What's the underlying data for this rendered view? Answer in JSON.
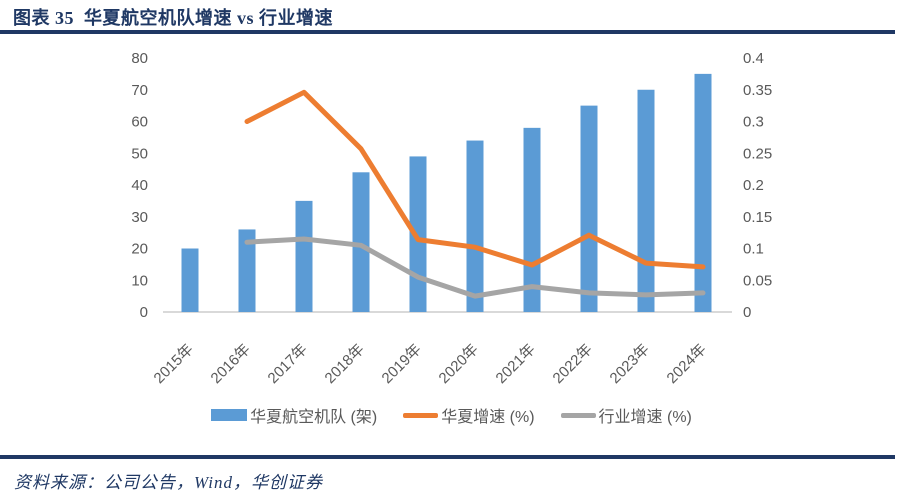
{
  "header": {
    "title": "图表 35  华夏航空机队增速 vs 行业增速"
  },
  "footer": {
    "source_label": "资料来源：",
    "source_text": "公司公告，Wind，华创证券"
  },
  "colors": {
    "navy": "#1F3864",
    "bar_blue": "#5B9BD5",
    "line_orange": "#ED7D31",
    "line_gray": "#A5A5A5",
    "axis_text": "#595959",
    "axis_line": "#D9D9D9"
  },
  "chart_data": {
    "type": "bar",
    "subtype": "bar-line-combo",
    "title": "华夏航空机队增速 vs 行业增速",
    "categories": [
      "2015年",
      "2016年",
      "2017年",
      "2018年",
      "2019年",
      "2020年",
      "2021年",
      "2022年",
      "2023年",
      "2024年"
    ],
    "series": [
      {
        "name": "华夏航空机队 (架)",
        "type": "bar",
        "axis": "left",
        "color": "#5B9BD5",
        "values": [
          20,
          26,
          35,
          44,
          49,
          54,
          58,
          65,
          70,
          75
        ]
      },
      {
        "name": "华夏增速 (%)",
        "type": "line",
        "axis": "right",
        "color": "#ED7D31",
        "values": [
          null,
          0.3,
          0.346,
          0.257,
          0.114,
          0.102,
          0.074,
          0.121,
          0.077,
          0.071
        ]
      },
      {
        "name": "行业增速 (%)",
        "type": "line",
        "axis": "right",
        "color": "#A5A5A5",
        "values": [
          null,
          0.11,
          0.115,
          0.105,
          0.055,
          0.025,
          0.04,
          0.03,
          0.027,
          0.03
        ]
      }
    ],
    "left_axis": {
      "min": 0,
      "max": 80,
      "step": 10,
      "ticks": [
        "0",
        "10",
        "20",
        "30",
        "40",
        "50",
        "60",
        "70",
        "80"
      ]
    },
    "right_axis": {
      "min": 0,
      "max": 0.4,
      "step": 0.05,
      "ticks": [
        "0",
        "0.05",
        "0.1",
        "0.15",
        "0.2",
        "0.25",
        "0.3",
        "0.35",
        "0.4"
      ]
    },
    "grid": false,
    "legend_position": "bottom",
    "x_label_rotation": -45
  }
}
